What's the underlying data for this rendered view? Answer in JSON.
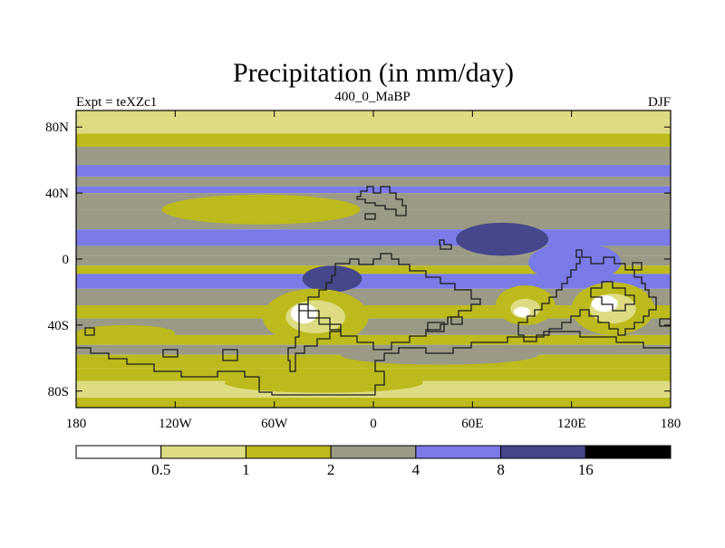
{
  "figure": {
    "title": "Precipitation (in mm/day)",
    "left_label": "Expt = teXZc1",
    "center_label": "400_0_MaBP",
    "right_label": "DJF"
  },
  "colors": {
    "lt_0_5": "#ffffff",
    "b_0_5_1": "#dedc82",
    "b_1_2": "#bcba1c",
    "b_2_4": "#9a9a86",
    "b_4_8": "#7a7ae8",
    "b_8_16": "#46468c",
    "gt_16": "#000000",
    "coast": "#1c1c1c"
  },
  "chart_data": {
    "type": "heatmap",
    "variable": "Precipitation",
    "units": "mm/day",
    "xlim": [
      -180,
      180
    ],
    "ylim": [
      -90,
      90
    ],
    "x_ticks": [
      {
        "value": -180,
        "label": "180"
      },
      {
        "value": -120,
        "label": "120W"
      },
      {
        "value": -60,
        "label": "60W"
      },
      {
        "value": 0,
        "label": "0"
      },
      {
        "value": 60,
        "label": "60E"
      },
      {
        "value": 120,
        "label": "120E"
      },
      {
        "value": 180,
        "label": "180"
      }
    ],
    "y_ticks": [
      {
        "value": 80,
        "label": "80N"
      },
      {
        "value": 40,
        "label": "40N"
      },
      {
        "value": 0,
        "label": "0"
      },
      {
        "value": -40,
        "label": "40S"
      },
      {
        "value": -80,
        "label": "80S"
      }
    ],
    "colorbar": {
      "levels": [
        0.5,
        1,
        2,
        4,
        8,
        16
      ],
      "labels": [
        "0.5",
        "1",
        "2",
        "4",
        "8",
        "16"
      ],
      "colors": [
        "#ffffff",
        "#dedc82",
        "#bcba1c",
        "#9a9a86",
        "#7a7ae8",
        "#46468c",
        "#000000"
      ]
    },
    "zonal_bands": [
      {
        "lat": [
          84,
          90
        ],
        "value": 0.8
      },
      {
        "lat": [
          76,
          84
        ],
        "value": 0.7
      },
      {
        "lat": [
          68,
          76
        ],
        "value": 1.5
      },
      {
        "lat": [
          57,
          68
        ],
        "value": 2.8
      },
      {
        "lat": [
          50,
          57
        ],
        "value": 5.0
      },
      {
        "lat": [
          44,
          50
        ],
        "value": 3.0
      },
      {
        "lat": [
          40,
          44
        ],
        "value": 5.0
      },
      {
        "lat": [
          30,
          40
        ],
        "value": 3.0
      },
      {
        "lat": [
          18,
          30
        ],
        "value": 3.0
      },
      {
        "lat": [
          14,
          18
        ],
        "value": 5.0
      },
      {
        "lat": [
          8,
          14
        ],
        "value": 6.0
      },
      {
        "lat": [
          2,
          8
        ],
        "value": 2.8
      },
      {
        "lat": [
          -4,
          2
        ],
        "value": 2.8
      },
      {
        "lat": [
          -9,
          -4
        ],
        "value": 1.5
      },
      {
        "lat": [
          -18,
          -9
        ],
        "value": 5.0
      },
      {
        "lat": [
          -28,
          -18
        ],
        "value": 3.0
      },
      {
        "lat": [
          -36,
          -28
        ],
        "value": 1.5
      },
      {
        "lat": [
          -46,
          -36
        ],
        "value": 3.0
      },
      {
        "lat": [
          -52,
          -46
        ],
        "value": 1.5
      },
      {
        "lat": [
          -58,
          -52
        ],
        "value": 3.0
      },
      {
        "lat": [
          -66,
          -58
        ],
        "value": 1.5
      },
      {
        "lat": [
          -74,
          -66
        ],
        "value": 1.5
      },
      {
        "lat": [
          -84,
          -74
        ],
        "value": 0.8
      },
      {
        "lat": [
          -90,
          -84
        ],
        "value": 1.5
      }
    ],
    "regional_features": [
      {
        "lon": 78,
        "lat": 12,
        "rlon": 28,
        "rlat": 10,
        "value": 12
      },
      {
        "lon": 122,
        "lat": -2,
        "rlon": 28,
        "rlat": 12,
        "value": 6
      },
      {
        "lon": -25,
        "lat": -12,
        "rlon": 18,
        "rlat": 8,
        "value": 12
      },
      {
        "lon": -68,
        "lat": 30,
        "rlon": 60,
        "rlat": 9,
        "value": 1.5
      },
      {
        "lon": -35,
        "lat": -35,
        "rlon": 32,
        "rlat": 17,
        "value": 1.5
      },
      {
        "lon": -35,
        "lat": -35,
        "rlon": 18,
        "rlat": 10,
        "value": 0.7
      },
      {
        "lon": -42,
        "lat": -33,
        "rlon": 8,
        "rlat": 6,
        "value": 0.3
      },
      {
        "lon": 92,
        "lat": -28,
        "rlon": 18,
        "rlat": 12,
        "value": 1.5
      },
      {
        "lon": 92,
        "lat": -30,
        "rlon": 9,
        "rlat": 6,
        "value": 0.7
      },
      {
        "lon": 90,
        "lat": -32,
        "rlon": 5,
        "rlat": 3,
        "value": 0.3
      },
      {
        "lon": 145,
        "lat": -30,
        "rlon": 25,
        "rlat": 16,
        "value": 1.5
      },
      {
        "lon": 145,
        "lat": -30,
        "rlon": 14,
        "rlat": 9,
        "value": 0.7
      },
      {
        "lon": 140,
        "lat": -27,
        "rlon": 8,
        "rlat": 5,
        "value": 0.3
      },
      {
        "lon": -150,
        "lat": -45,
        "rlon": 30,
        "rlat": 5,
        "value": 1.5
      },
      {
        "lon": 40,
        "lat": -58,
        "rlon": 60,
        "rlat": 6,
        "value": 3.0
      },
      {
        "lon": -30,
        "lat": -75,
        "rlon": 60,
        "rlat": 6,
        "value": 1.5
      }
    ]
  }
}
